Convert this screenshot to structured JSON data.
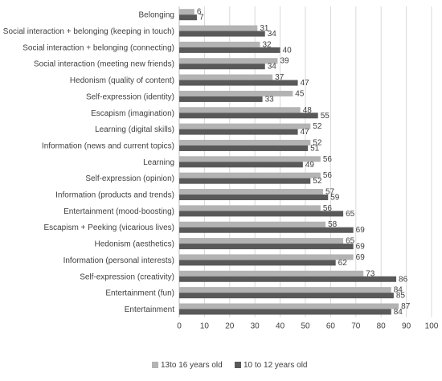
{
  "chart_data": {
    "type": "bar",
    "orientation": "horizontal",
    "categories": [
      "Belonging",
      "Social interaction + belonging (keeping in touch)",
      "Social interaction + belonging (connecting)",
      "Social interaction (meeting new friends)",
      "Hedonism (quality of content)",
      "Self-expression (identity)",
      "Escapism (imagination)",
      "Learning (digital skills)",
      "Information (news and current topics)",
      "Learning",
      "Self-expression (opinion)",
      "Information (products and trends)",
      "Entertainment (mood-boosting)",
      "Escapism + Peeking (vicarious lives)",
      "Hedonism (aesthetics)",
      "Information (personal interests)",
      "Self-expression (creativity)",
      "Entertainment (fun)",
      "Entertainment"
    ],
    "series": [
      {
        "name": "13to 16 years old",
        "color": "#b3b3b3",
        "values": [
          6,
          31,
          32,
          39,
          37,
          45,
          48,
          52,
          52,
          56,
          56,
          57,
          56,
          58,
          65,
          69,
          73,
          84,
          87
        ]
      },
      {
        "name": "10 to 12 years old",
        "color": "#595959",
        "values": [
          7,
          34,
          40,
          34,
          47,
          33,
          55,
          47,
          51,
          49,
          52,
          59,
          65,
          69,
          69,
          62,
          86,
          85,
          84
        ]
      }
    ],
    "xlim": [
      0,
      100
    ],
    "xticks": [
      0,
      10,
      20,
      30,
      40,
      50,
      60,
      70,
      80,
      90,
      100
    ],
    "grid": "vertical",
    "legend": "bottom"
  }
}
